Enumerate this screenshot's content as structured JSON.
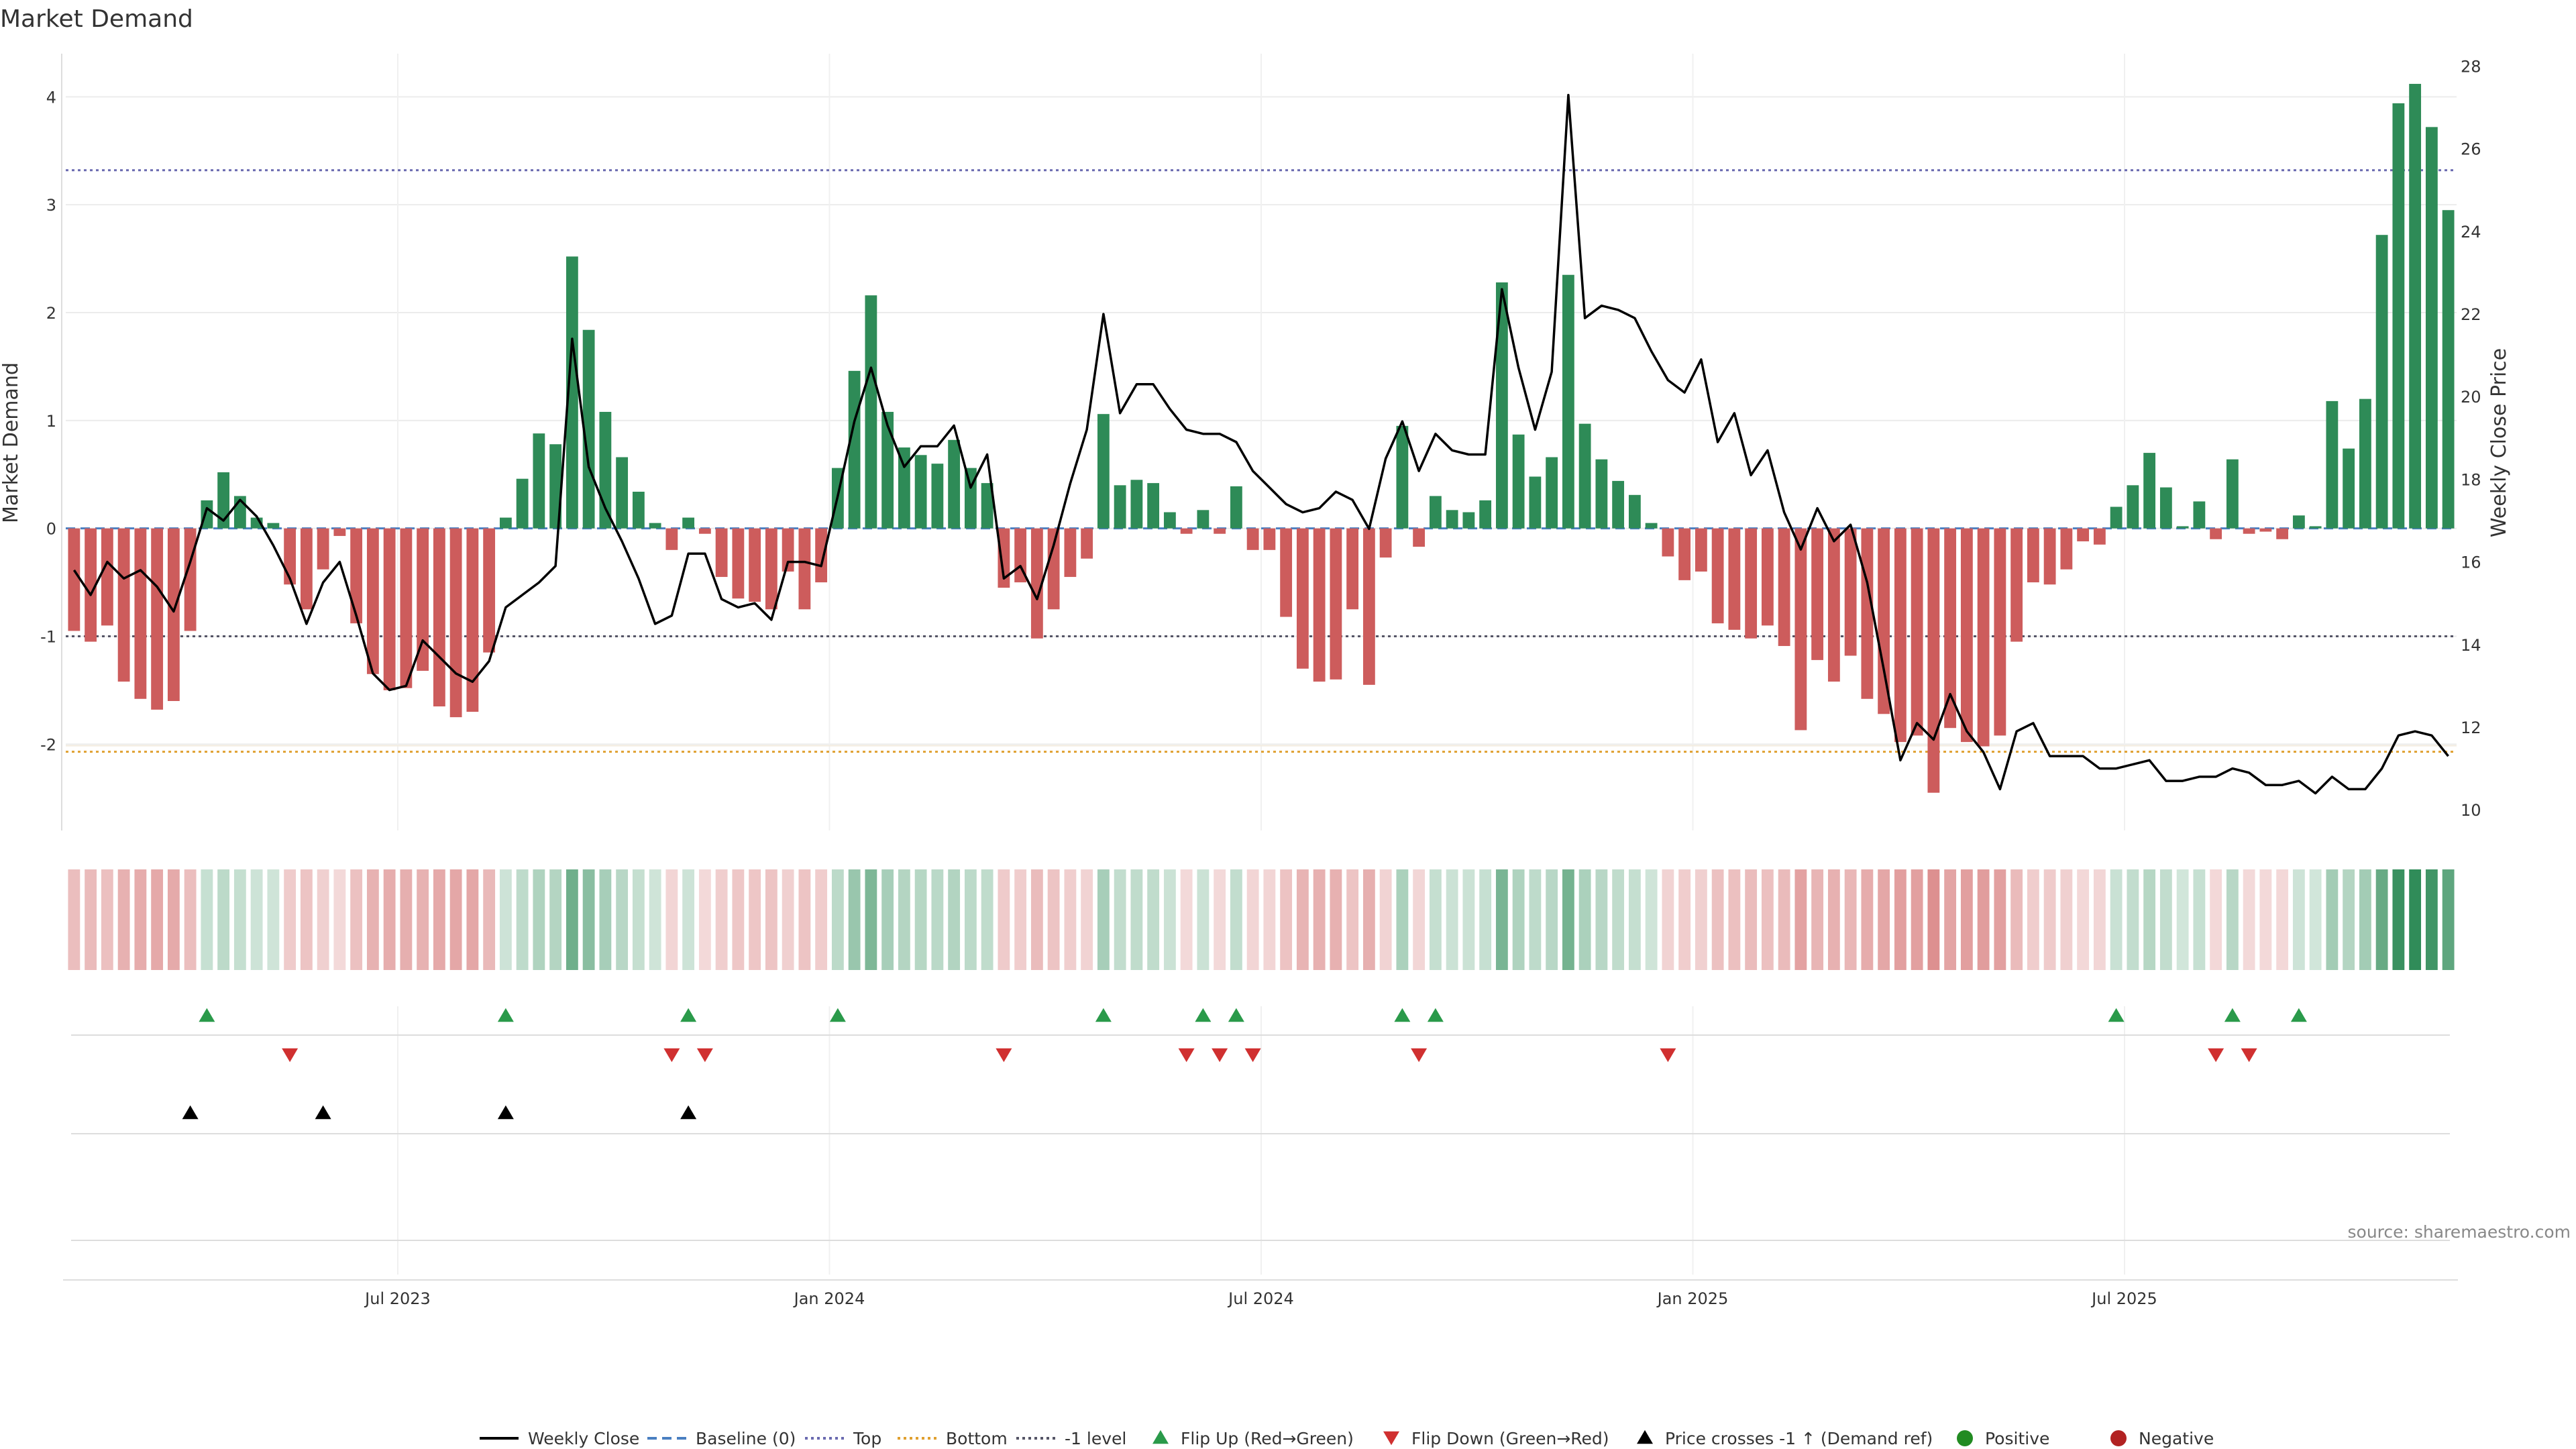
{
  "chart_data": {
    "type": "bar",
    "title": "Market Demand",
    "ylabel": "Market Demand",
    "y2label": "Weekly Close Price",
    "ylim": [
      -2.8,
      4.4
    ],
    "y2lim": [
      9.5,
      28.3
    ],
    "y_ticks": [
      -2,
      -1,
      0,
      1,
      2,
      3,
      4
    ],
    "y2_ticks": [
      10,
      12,
      14,
      16,
      18,
      20,
      22,
      24,
      26,
      28
    ],
    "x_ticks": [
      {
        "label": "Jul 2023",
        "week": 20
      },
      {
        "label": "Jan 2024",
        "week": 46
      },
      {
        "label": "Jul 2024",
        "week": 72
      },
      {
        "label": "Jan 2025",
        "week": 98
      },
      {
        "label": "Jul 2025",
        "week": 124
      }
    ],
    "reference_lines": {
      "top": 3.32,
      "bottom": -2.07,
      "minus_one": -1.0,
      "baseline": 0
    },
    "demand": [
      -0.95,
      -1.05,
      -0.9,
      -1.42,
      -1.58,
      -1.68,
      -1.6,
      -0.95,
      0.26,
      0.52,
      0.3,
      0.1,
      0.05,
      -0.52,
      -0.75,
      -0.38,
      -0.07,
      -0.88,
      -1.35,
      -1.5,
      -1.48,
      -1.32,
      -1.65,
      -1.75,
      -1.7,
      -1.15,
      0.1,
      0.46,
      0.88,
      0.78,
      2.52,
      1.84,
      1.08,
      0.66,
      0.34,
      0.05,
      -0.2,
      0.1,
      -0.05,
      -0.45,
      -0.65,
      -0.68,
      -0.75,
      -0.4,
      -0.75,
      -0.5,
      0.56,
      1.46,
      2.16,
      1.08,
      0.75,
      0.68,
      0.6,
      0.82,
      0.56,
      0.42,
      -0.55,
      -0.5,
      -1.02,
      -0.75,
      -0.45,
      -0.28,
      1.06,
      0.4,
      0.45,
      0.42,
      0.15,
      -0.05,
      0.17,
      -0.05,
      0.39,
      -0.2,
      -0.2,
      -0.82,
      -1.3,
      -1.42,
      -1.4,
      -0.75,
      -1.45,
      -0.27,
      0.95,
      -0.17,
      0.3,
      0.17,
      0.15,
      0.26,
      2.28,
      0.87,
      0.48,
      0.66,
      2.35,
      0.97,
      0.64,
      0.44,
      0.31,
      0.05,
      -0.26,
      -0.48,
      -0.4,
      -0.88,
      -0.94,
      -1.02,
      -0.9,
      -1.09,
      -1.87,
      -1.22,
      -1.42,
      -1.18,
      -1.58,
      -1.72,
      -1.98,
      -1.92,
      -2.45,
      -1.85,
      -1.98,
      -2.02,
      -1.92,
      -1.05,
      -0.5,
      -0.52,
      -0.38,
      -0.12,
      -0.15,
      0.2,
      0.4,
      0.7,
      0.38,
      0.02,
      0.25,
      -0.1,
      0.64,
      -0.05,
      -0.03,
      -0.1,
      0.12,
      0.02,
      1.18,
      0.74,
      1.2,
      2.72,
      3.94,
      4.12,
      3.72,
      2.95
    ],
    "price": [
      15.8,
      15.2,
      16.0,
      15.6,
      15.8,
      15.4,
      14.8,
      16.0,
      17.3,
      17.0,
      17.5,
      17.1,
      16.4,
      15.6,
      14.5,
      15.5,
      16.0,
      14.7,
      13.3,
      12.9,
      13.0,
      14.1,
      13.7,
      13.3,
      13.1,
      13.6,
      14.9,
      15.2,
      15.5,
      15.9,
      21.4,
      18.3,
      17.3,
      16.5,
      15.6,
      14.5,
      14.7,
      16.2,
      16.2,
      15.1,
      14.9,
      15.0,
      14.6,
      16.0,
      16.0,
      15.9,
      17.6,
      19.4,
      20.7,
      19.3,
      18.3,
      18.8,
      18.8,
      19.3,
      17.8,
      18.6,
      15.6,
      15.9,
      15.1,
      16.4,
      17.9,
      19.2,
      22.0,
      19.6,
      20.3,
      20.3,
      19.7,
      19.2,
      19.1,
      19.1,
      18.9,
      18.2,
      17.8,
      17.4,
      17.2,
      17.3,
      17.7,
      17.5,
      16.8,
      18.5,
      19.4,
      18.2,
      19.1,
      18.7,
      18.6,
      18.6,
      22.6,
      20.7,
      19.2,
      20.6,
      27.3,
      21.9,
      22.2,
      22.1,
      21.9,
      21.1,
      20.4,
      20.1,
      20.9,
      18.9,
      19.6,
      18.1,
      18.7,
      17.2,
      16.3,
      17.3,
      16.5,
      16.9,
      15.5,
      13.4,
      11.2,
      12.1,
      11.7,
      12.8,
      11.9,
      11.4,
      10.5,
      11.9,
      12.1,
      11.3,
      11.3,
      11.3,
      11.0,
      11.0,
      11.1,
      11.2,
      10.7,
      10.7,
      10.8,
      10.8,
      11.0,
      10.9,
      10.6,
      10.6,
      10.7,
      10.4,
      10.8,
      10.5,
      10.5,
      11.0,
      11.8,
      11.9,
      11.8,
      11.3
    ],
    "flip_up_weeks": [
      8,
      26,
      37,
      46,
      62,
      68,
      70,
      80,
      82,
      123,
      130,
      134
    ],
    "flip_down_weeks": [
      13,
      36,
      38,
      56,
      67,
      69,
      71,
      81,
      96,
      129,
      131
    ],
    "price_cross_weeks": [
      7,
      15,
      26,
      37
    ],
    "legend": [
      {
        "label": "Weekly Close",
        "marker": "line",
        "color": "#000000"
      },
      {
        "label": "Baseline (0)",
        "marker": "dash",
        "color": "#4a7fc1"
      },
      {
        "label": "Top",
        "marker": "dot",
        "color": "#6a6ab0"
      },
      {
        "label": "Bottom",
        "marker": "dot",
        "color": "#e0a030"
      },
      {
        "label": "-1 level",
        "marker": "dot",
        "color": "#555566"
      },
      {
        "label": "Flip Up (Red→Green)",
        "marker": "tri-up",
        "color": "#2a9a4a"
      },
      {
        "label": "Flip Down (Green→Red)",
        "marker": "tri-down",
        "color": "#d03030"
      },
      {
        "label": "Price crosses -1 ↑ (Demand ref)",
        "marker": "tri-up",
        "color": "#000000"
      },
      {
        "label": "Positive",
        "marker": "circle",
        "color": "#228b22"
      },
      {
        "label": "Negative",
        "marker": "circle",
        "color": "#b22222"
      }
    ],
    "colors": {
      "positive_bar": "#2e8b57",
      "negative_bar": "#cd5c5c",
      "positive": "#228b22",
      "negative": "#b22222"
    }
  },
  "source": "source: sharemaestro.com"
}
